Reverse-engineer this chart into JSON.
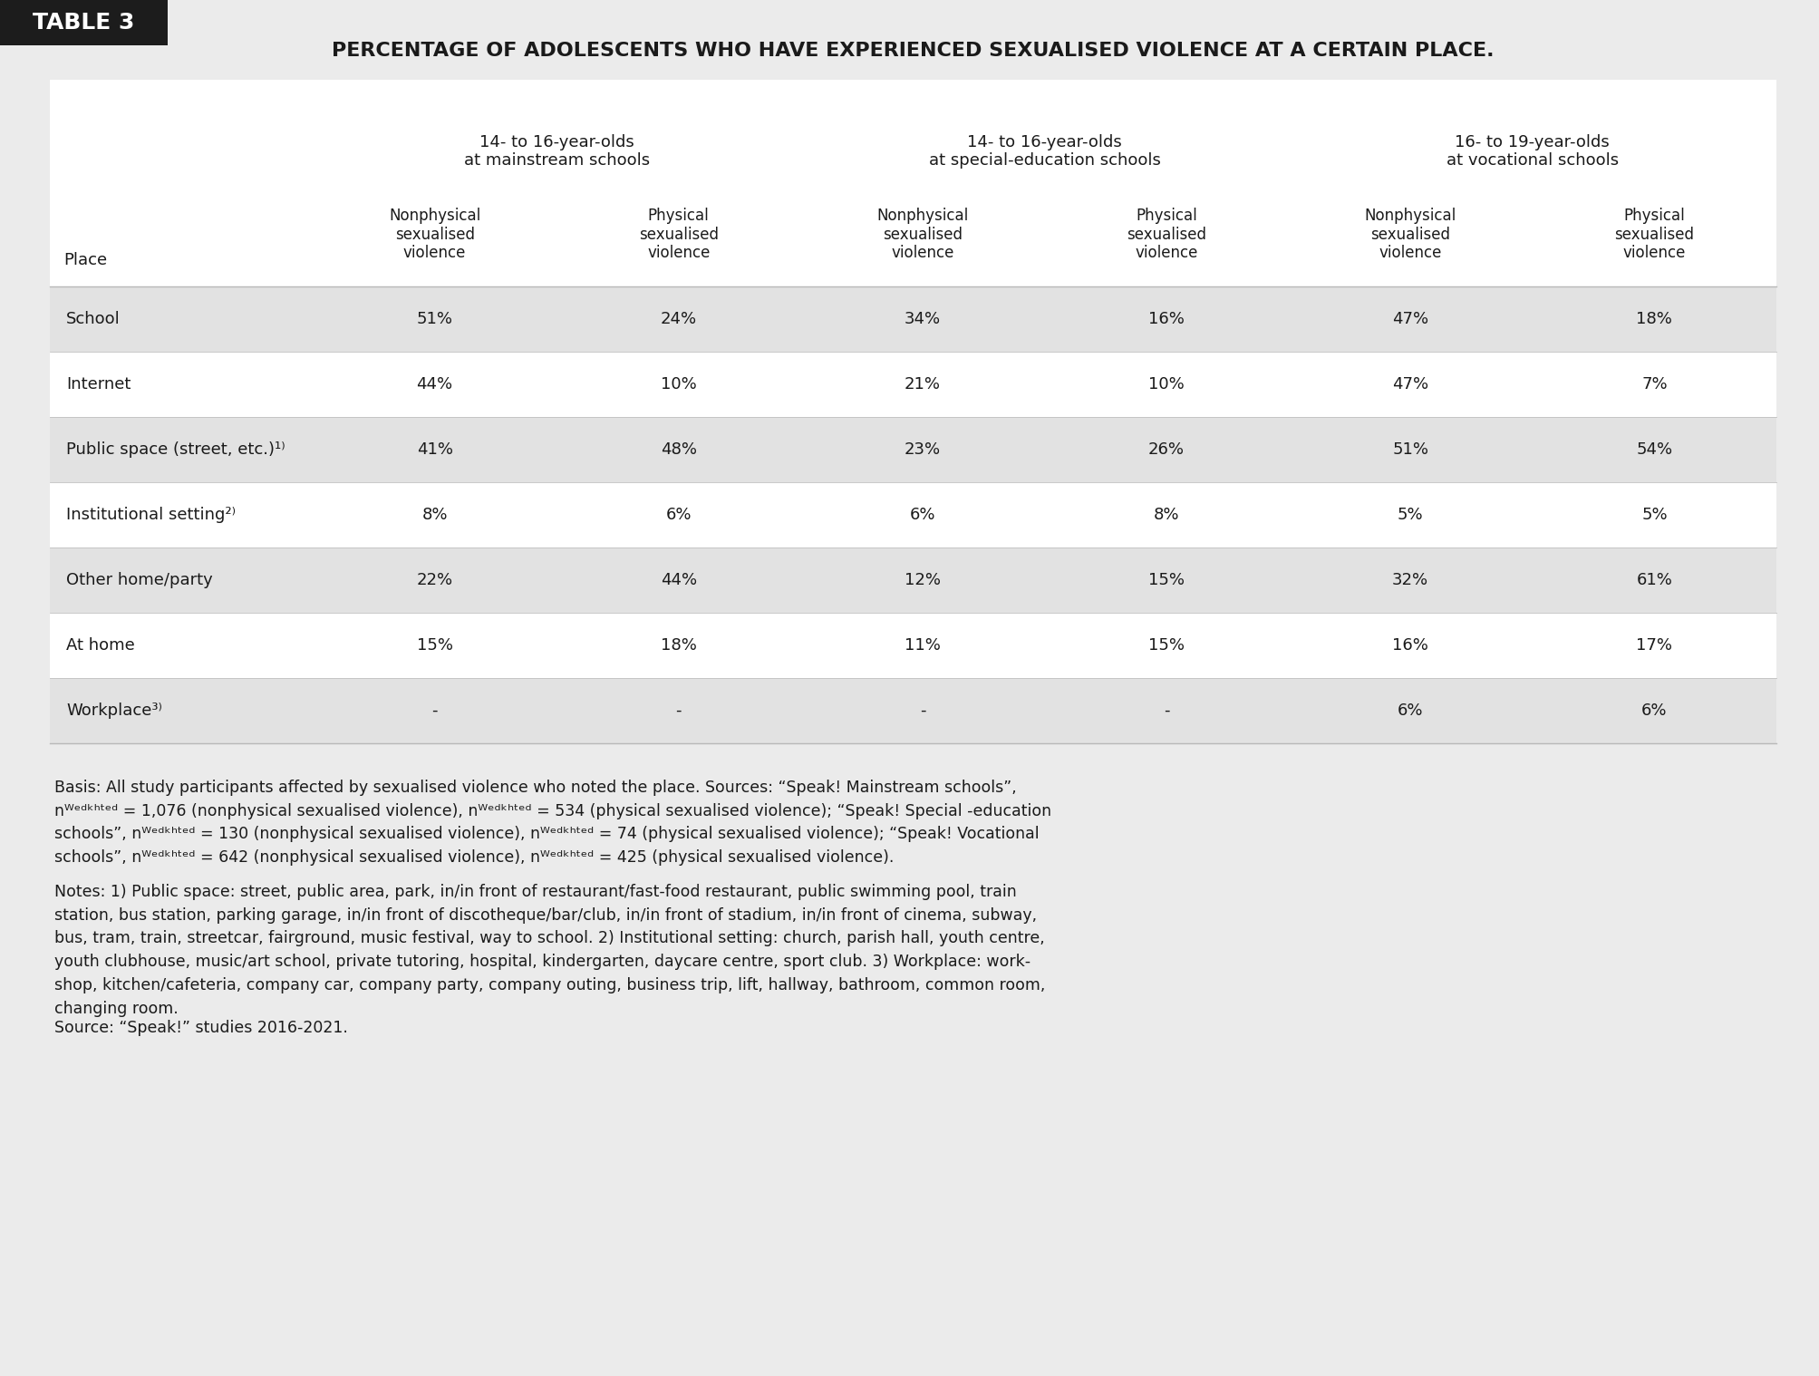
{
  "title": "PERCENTAGE OF ADOLESCENTS WHO HAVE EXPERIENCED SEXUALISED VIOLENCE AT A CERTAIN PLACE.",
  "table3_label": "TABLE 3",
  "group_headers": [
    "14- to 16-year-olds\nat mainstream schools",
    "14- to 16-year-olds\nat special-education schools",
    "16- to 19-year-olds\nat vocational schools"
  ],
  "col_headers": [
    "Nonphysical\nsexualised\nviolence",
    "Physical\nsexualised\nviolence",
    "Nonphysical\nsexualised\nviolence",
    "Physical\nsexualised\nviolence",
    "Nonphysical\nsexualised\nviolence",
    "Physical\nsexualised\nviolence"
  ],
  "place_label": "Place",
  "rows": [
    {
      "place": "School",
      "values": [
        "51%",
        "24%",
        "34%",
        "16%",
        "47%",
        "18%"
      ],
      "shaded": true
    },
    {
      "place": "Internet",
      "values": [
        "44%",
        "10%",
        "21%",
        "10%",
        "47%",
        "7%"
      ],
      "shaded": false
    },
    {
      "place": "Public space (street, etc.)¹⁾",
      "values": [
        "41%",
        "48%",
        "23%",
        "26%",
        "51%",
        "54%"
      ],
      "shaded": true
    },
    {
      "place": "Institutional setting²⁾",
      "values": [
        "8%",
        "6%",
        "6%",
        "8%",
        "5%",
        "5%"
      ],
      "shaded": false
    },
    {
      "place": "Other home/party",
      "values": [
        "22%",
        "44%",
        "12%",
        "15%",
        "32%",
        "61%"
      ],
      "shaded": true
    },
    {
      "place": "At home",
      "values": [
        "15%",
        "18%",
        "11%",
        "15%",
        "16%",
        "17%"
      ],
      "shaded": false
    },
    {
      "place": "Workplace³⁾",
      "values": [
        "-",
        "-",
        "-",
        "-",
        "6%",
        "6%"
      ],
      "shaded": true
    }
  ],
  "bg_color": "#ebebeb",
  "row_shaded_color": "#e2e2e2",
  "row_white_color": "#ffffff",
  "table_bg": "#ffffff"
}
